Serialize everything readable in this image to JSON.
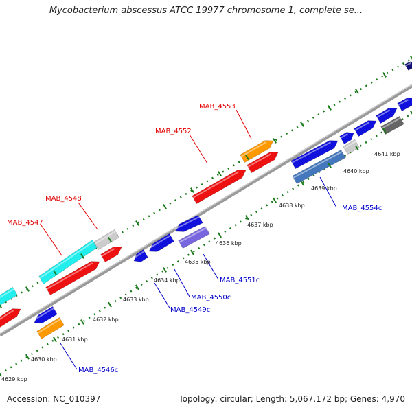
{
  "title": "Mycobacterium abscessus ATCC 19977 chromosome 1, complete se...",
  "footer": {
    "accession": "Accession: NC_010397",
    "summary": "Topology: circular; Length: 5,067,172 bp; Genes: 4,970"
  },
  "colors": {
    "red": "#ee1111",
    "orange": "#ff9900",
    "cyan": "#22eeee",
    "blue": "#1111dd",
    "steelblue": "#4477bb",
    "lavender": "#7766dd",
    "lightgray": "#cccccc",
    "darkgray": "#666666",
    "navy": "#111177",
    "tick": "#1a7a1a",
    "backbone": "#888888",
    "label_red": "#e00000",
    "label_blue": "#0000c8"
  },
  "ticks": [
    {
      "label": "4629 kbp"
    },
    {
      "label": "4630 kbp"
    },
    {
      "label": "4631 kbp"
    },
    {
      "label": "4632 kbp"
    },
    {
      "label": "4633 kbp"
    },
    {
      "label": "4634 kbp"
    },
    {
      "label": "4635 kbp"
    },
    {
      "label": "4636 kbp"
    },
    {
      "label": "4637 kbp"
    },
    {
      "label": "4638 kbp"
    },
    {
      "label": "4639 kbp"
    },
    {
      "label": "4640 kbp"
    },
    {
      "label": "4641 kbp"
    }
  ],
  "gene_labels": [
    {
      "text": "MAB_4553",
      "strand": "forward"
    },
    {
      "text": "MAB_4552",
      "strand": "forward"
    },
    {
      "text": "MAB_4548",
      "strand": "forward"
    },
    {
      "text": "MAB_4547",
      "strand": "forward"
    },
    {
      "text": "MAB_4554c",
      "strand": "reverse"
    },
    {
      "text": "MAB_4551c",
      "strand": "reverse"
    },
    {
      "text": "MAB_4550c",
      "strand": "reverse"
    },
    {
      "text": "MAB_4549c",
      "strand": "reverse"
    },
    {
      "text": "MAB_4546c",
      "strand": "reverse"
    }
  ]
}
